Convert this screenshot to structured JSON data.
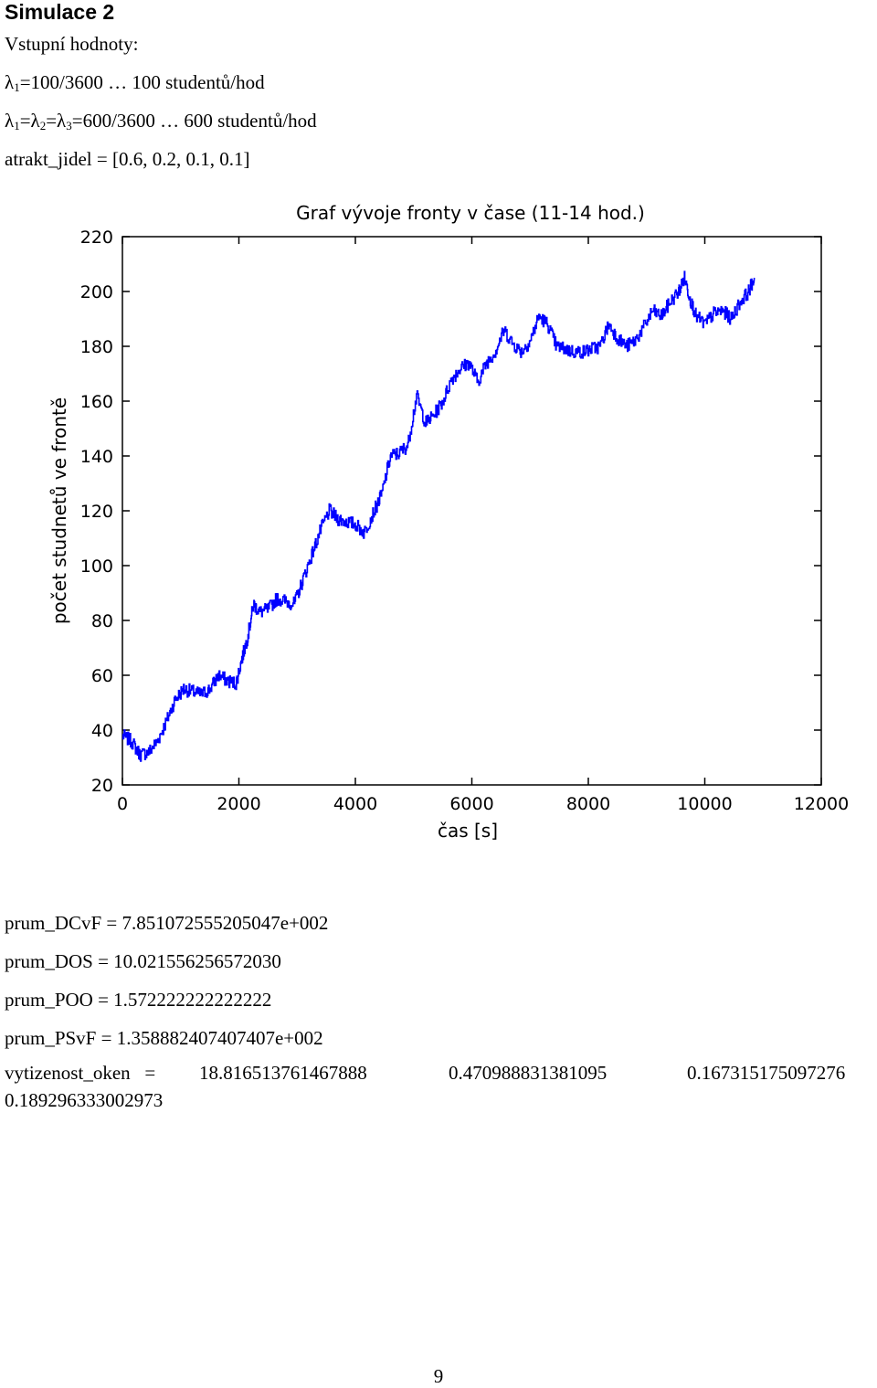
{
  "heading": "Simulace 2",
  "inputs": {
    "label": "Vstupní hodnoty:",
    "lambda1": {
      "symbol": "λ",
      "sub": "1",
      "expr": "=100/3600 … 100 studentů/hod"
    },
    "lambda_group": {
      "s1": "λ",
      "sub1": "1",
      "s2": "=λ",
      "sub2": "2",
      "s3": "=λ",
      "sub3": "3",
      "expr": "=600/3600 … 600 studentů/hod"
    },
    "atrakt": "atrakt_jidel = [0.6, 0.2, 0.1, 0.1]"
  },
  "chart_data": {
    "type": "line",
    "title": "Graf vývoje fronty v čase (11-14 hod.)",
    "xlabel": "čas [s]",
    "ylabel": "počet studnetů ve frontě",
    "xlim": [
      0,
      12000
    ],
    "ylim": [
      20,
      220
    ],
    "xticks": [
      0,
      2000,
      4000,
      6000,
      8000,
      10000,
      12000
    ],
    "yticks": [
      20,
      40,
      60,
      80,
      100,
      120,
      140,
      160,
      180,
      200,
      220
    ],
    "grid": false,
    "series": [
      {
        "color": "#0000ff",
        "x": [
          0,
          150,
          300,
          450,
          600,
          750,
          900,
          1050,
          1200,
          1350,
          1500,
          1650,
          1800,
          1950,
          2050,
          2150,
          2250,
          2350,
          2500,
          2650,
          2800,
          2950,
          3100,
          3250,
          3400,
          3550,
          3700,
          3850,
          4000,
          4150,
          4300,
          4450,
          4600,
          4750,
          4900,
          5050,
          5200,
          5350,
          5500,
          5650,
          5800,
          5950,
          6100,
          6250,
          6400,
          6550,
          6700,
          6850,
          7000,
          7150,
          7300,
          7450,
          7600,
          7750,
          7900,
          8050,
          8200,
          8350,
          8500,
          8650,
          8800,
          8950,
          9100,
          9250,
          9400,
          9550,
          9650,
          9750,
          9850,
          10000,
          10150,
          10300,
          10450,
          10600,
          10750,
          10850
        ],
        "y": [
          38,
          36,
          31,
          32,
          36,
          43,
          51,
          55,
          54,
          53,
          55,
          60,
          58,
          57,
          66,
          74,
          86,
          83,
          84,
          88,
          87,
          86,
          95,
          104,
          113,
          120,
          117,
          116,
          115,
          112,
          119,
          126,
          140,
          141,
          144,
          162,
          152,
          155,
          160,
          168,
          172,
          174,
          167,
          174,
          178,
          186,
          181,
          178,
          182,
          191,
          188,
          180,
          179,
          178,
          178,
          179,
          180,
          188,
          183,
          180,
          182,
          187,
          193,
          191,
          196,
          200,
          205,
          197,
          191,
          188,
          192,
          193,
          190,
          196,
          200,
          205
        ]
      }
    ]
  },
  "results": {
    "dcvf": "prum_DCvF = 7.851072555205047e+002",
    "dos": "prum_DOS = 10.021556256572030",
    "poo": "prum_POO = 1.572222222222222",
    "psvf": "prum_PSvF = 1.358882407407407e+002",
    "vyt_label": "vytizenost_oken   =",
    "vyt_v1": "18.816513761467888",
    "vyt_v2": "0.470988831381095",
    "vyt_v3": "0.167315175097276",
    "vyt_v4": "0.189296333002973"
  },
  "page_number": "9"
}
